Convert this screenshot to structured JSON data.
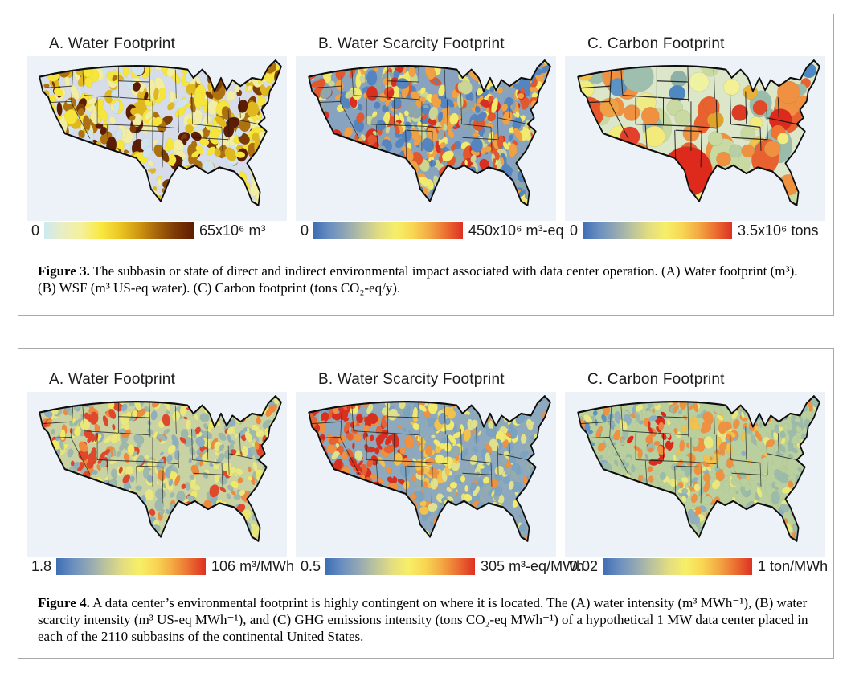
{
  "figure3": {
    "caption_label": "Figure 3.",
    "caption_text": " The subbasin or state of direct and indirect environmental impact associated with data center operation. (A) Water footprint (m³). (B) WSF (m³ US-eq water). (C) Carbon footprint (tons CO₂-eq/y).",
    "panels": [
      {
        "title": "A. Water Footprint",
        "scale_min": "0",
        "scale_max": "65x10⁶ m³",
        "colorbar": "water_brown"
      },
      {
        "title": "B. Water Scarcity Footprint",
        "scale_min": "0",
        "scale_max": "450x10⁶ m³-eq",
        "colorbar": "rdylbu"
      },
      {
        "title": "C. Carbon Footprint",
        "scale_min": "0",
        "scale_max": "3.5x10⁶ tons",
        "colorbar": "rdylbu"
      }
    ]
  },
  "figure4": {
    "caption_label": "Figure 4.",
    "caption_text": " A data center’s environmental footprint is highly contingent on where it is located. The (A) water intensity (m³ MWh⁻¹), (B) water scarcity intensity (m³ US-eq MWh⁻¹), and (C) GHG emissions intensity (tons CO₂-eq MWh⁻¹) of a hypothetical 1 MW data center placed in each of the 2110 subbasins of the continental United States.",
    "panels": [
      {
        "title": "A. Water Footprint",
        "scale_min": "1.8",
        "scale_max": "106 m³/MWh",
        "colorbar": "rdylbu"
      },
      {
        "title": "B. Water Scarcity Footprint",
        "scale_min": "0.5",
        "scale_max": "305 m³-eq/MWh",
        "colorbar": "rdylbu"
      },
      {
        "title": "C. Carbon Footprint",
        "scale_min": "0.02",
        "scale_max": "1 ton/MWh",
        "colorbar": "rdylbu"
      }
    ]
  },
  "colorbars": {
    "water_brown": {
      "stops": [
        "#cde9f1",
        "#e9eec2",
        "#f5f09b",
        "#f9ea43",
        "#ecc724",
        "#d29a12",
        "#a8660a",
        "#7e3a05",
        "#5f1c03"
      ]
    },
    "rdylbu": {
      "stops": [
        "#3e6db4",
        "#6b8fc0",
        "#93a8b4",
        "#bcc49d",
        "#e3dd80",
        "#f7ef68",
        "#f8d653",
        "#f3a943",
        "#eb6e31",
        "#dd3123"
      ]
    }
  },
  "chart_data": [
    {
      "figure": "Figure 3",
      "panel": "A",
      "type": "heatmap",
      "subtype": "us-subbasin-choropleth",
      "title": "Water Footprint",
      "scale_min": "0",
      "scale_max": "65x10⁶",
      "unit": "m³",
      "geography": "continental United States",
      "granularity": "subbasin",
      "palette": "light-blue→yellow→dark-brown"
    },
    {
      "figure": "Figure 3",
      "panel": "B",
      "type": "heatmap",
      "subtype": "us-subbasin-choropleth",
      "title": "Water Scarcity Footprint",
      "scale_min": "0",
      "scale_max": "450x10⁶",
      "unit": "m³-eq",
      "geography": "continental United States",
      "granularity": "subbasin",
      "palette": "blue→yellow→red"
    },
    {
      "figure": "Figure 3",
      "panel": "C",
      "type": "heatmap",
      "subtype": "us-state-choropleth",
      "title": "Carbon Footprint",
      "scale_min": "0",
      "scale_max": "3.5x10⁶",
      "unit": "tons",
      "geography": "continental United States",
      "granularity": "state",
      "palette": "blue→yellow→red",
      "notable": "Texas and Virginia highest (red); Idaho, South Dakota, Maine lowest (blue)"
    },
    {
      "figure": "Figure 4",
      "panel": "A",
      "type": "heatmap",
      "subtype": "us-subbasin-choropleth",
      "title": "Water Footprint",
      "scale_min": "1.8",
      "scale_max": "106",
      "unit": "m³/MWh",
      "geography": "continental United States",
      "granularity": "subbasin",
      "palette": "blue→yellow→red",
      "notable": "high in Montana, Utah/Arizona, northern California; moderate southeast"
    },
    {
      "figure": "Figure 4",
      "panel": "B",
      "type": "heatmap",
      "subtype": "us-subbasin-choropleth",
      "title": "Water Scarcity Footprint",
      "scale_min": "0.5",
      "scale_max": "305",
      "unit": "m³-eq/MWh",
      "geography": "continental United States",
      "granularity": "subbasin",
      "palette": "blue→yellow→red",
      "notable": "high across the arid West, low in the East"
    },
    {
      "figure": "Figure 4",
      "panel": "C",
      "type": "heatmap",
      "subtype": "us-subbasin-choropleth",
      "title": "Carbon Footprint",
      "scale_min": "0.02",
      "scale_max": "1",
      "unit": "ton/MWh",
      "geography": "continental United States",
      "granularity": "subbasin",
      "palette": "blue→yellow→red",
      "notable": "highest around Colorado/Wyoming, low in Pacific Northwest"
    }
  ]
}
